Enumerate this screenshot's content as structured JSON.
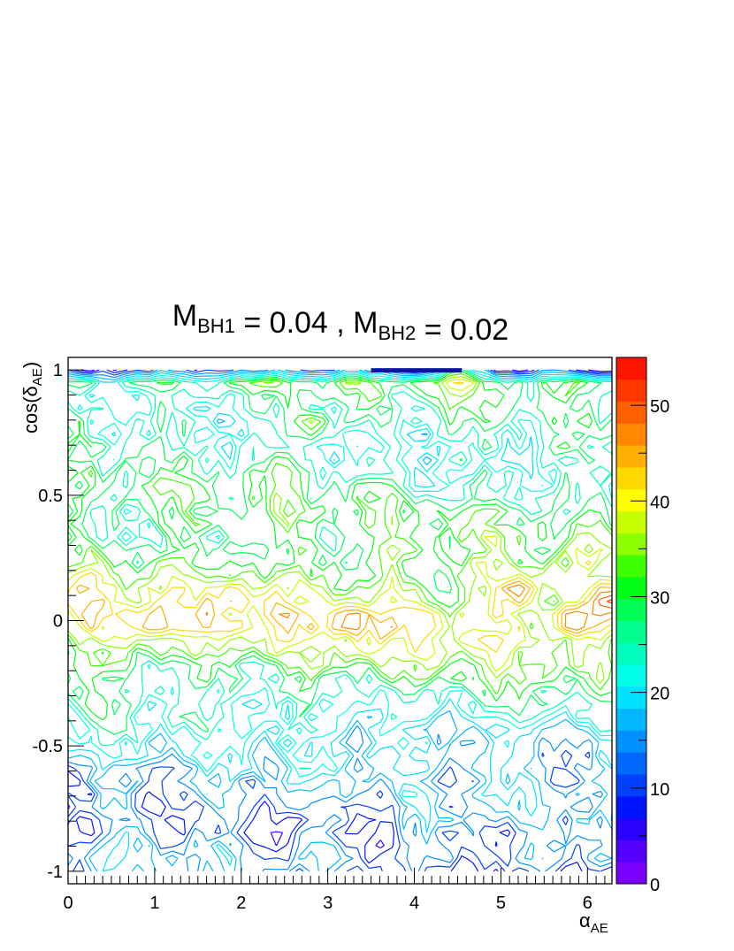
{
  "chart_data": {
    "type": "heatmap",
    "style": "contour",
    "title": {
      "parts": [
        {
          "text": "M",
          "sub": "BH1"
        },
        {
          "text": " = 0.04 , M",
          "sub": "BH2"
        },
        {
          "text": " = 0.02",
          "sub": ""
        }
      ]
    },
    "xlabel": {
      "main": "α",
      "sub": "AE"
    },
    "ylabel": {
      "main": "cos(δ",
      "sub": "AE",
      "close": ")"
    },
    "xlim": [
      0,
      6.2832
    ],
    "ylim": [
      -1.05,
      1.05
    ],
    "x_ticks": [
      "0",
      "1",
      "2",
      "3",
      "4",
      "5",
      "6"
    ],
    "y_ticks": [
      "-1",
      "-0.5",
      "0",
      "0.5",
      "1"
    ],
    "zlim": [
      0,
      55
    ],
    "z_ticks": [
      "0",
      "10",
      "20",
      "30",
      "40",
      "50"
    ],
    "n_levels": 20,
    "colors": [
      "#7a00ff",
      "#5500ff",
      "#2a00ff",
      "#0014ff",
      "#0040ff",
      "#0068ff",
      "#0090ff",
      "#00b8ff",
      "#00e0ff",
      "#00ffe8",
      "#00ffbf",
      "#00ff8f",
      "#00ff55",
      "#00ff14",
      "#40ff00",
      "#8cff00",
      "#c8ff00",
      "#ffff00",
      "#ffd800",
      "#ffb000",
      "#ff8800",
      "#ff6000",
      "#ff3800",
      "#ff1400"
    ],
    "profile": [
      {
        "y": -1.0,
        "value": 12
      },
      {
        "y": -0.95,
        "value": 15
      },
      {
        "y": -0.8,
        "value": 13
      },
      {
        "y": -0.6,
        "value": 16
      },
      {
        "y": -0.45,
        "value": 20
      },
      {
        "y": -0.3,
        "value": 26
      },
      {
        "y": -0.15,
        "value": 33
      },
      {
        "y": 0.0,
        "value": 40
      },
      {
        "y": 0.15,
        "value": 35
      },
      {
        "y": 0.3,
        "value": 30
      },
      {
        "y": 0.5,
        "value": 27
      },
      {
        "y": 0.7,
        "value": 24
      },
      {
        "y": 0.9,
        "value": 26
      },
      {
        "y": 0.98,
        "value": 30
      },
      {
        "y": 1.0,
        "value": 10
      }
    ],
    "peaks": [
      {
        "x": 5.85,
        "y": 0.0,
        "value": 52
      },
      {
        "x": 5.2,
        "y": 0.12,
        "value": 50
      },
      {
        "x": 3.3,
        "y": 0.0,
        "value": 50
      },
      {
        "x": 6.25,
        "y": 0.08,
        "value": 54
      },
      {
        "x": 1.0,
        "y": -0.01,
        "value": 47
      },
      {
        "x": 1.9,
        "y": 0.1,
        "value": 46
      },
      {
        "x": 4.1,
        "y": 0.0,
        "value": 45
      },
      {
        "x": 2.2,
        "y": -0.85,
        "value": 6
      },
      {
        "x": 0.25,
        "y": -0.85,
        "value": 7
      },
      {
        "x": 5.05,
        "y": -0.85,
        "value": 7
      },
      {
        "x": 3.3,
        "y": -0.85,
        "value": 8
      },
      {
        "x": 2.8,
        "y": 0.78,
        "value": 38
      },
      {
        "x": 4.5,
        "y": 0.95,
        "value": 42
      },
      {
        "x": 2.5,
        "y": 0.6,
        "value": 35
      },
      {
        "x": 4.4,
        "y": -0.65,
        "value": 9
      },
      {
        "x": 1.1,
        "y": -0.6,
        "value": 10
      }
    ],
    "band": {
      "x0": 3.5,
      "x1": 4.55,
      "y": 1.0,
      "color": "#0a14a0"
    }
  }
}
